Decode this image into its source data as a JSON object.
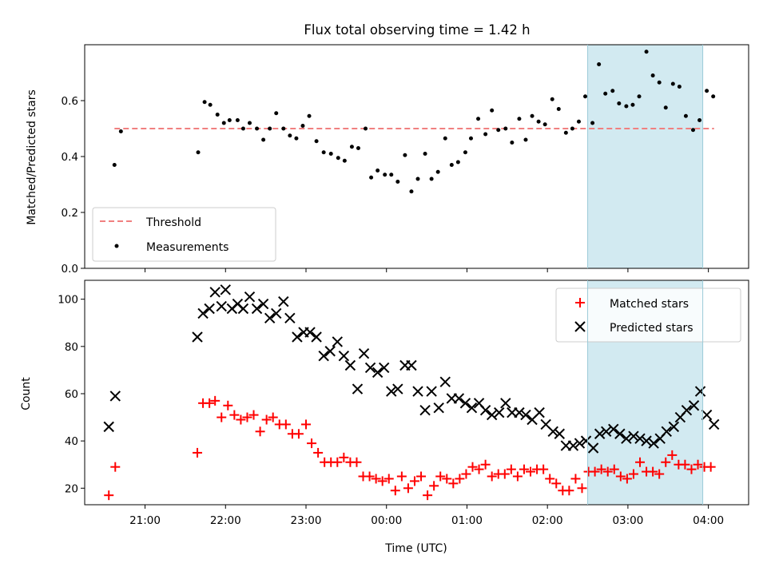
{
  "figure": {
    "title": "Flux total observing time = 1.42 h",
    "xlabel": "Time (UTC)",
    "xtick_labels": [
      "21:00",
      "22:00",
      "23:00",
      "00:00",
      "01:00",
      "02:00",
      "03:00",
      "04:00"
    ]
  },
  "colors": {
    "threshold": "#f08080",
    "measurements": "#000000",
    "matched": "#ff0000",
    "predicted": "#000000",
    "shade": "#add8e6"
  },
  "chart_data": [
    {
      "type": "scatter",
      "panel": "top",
      "title": "Flux total observing time = 1.42 h",
      "ylabel": "Matched/Predicted stars",
      "xlabel": "",
      "x_unit": "hours after 20:00 UTC",
      "xlim": [
        0.25,
        8.5
      ],
      "ylim": [
        0.0,
        0.8
      ],
      "yticks": [
        0.0,
        0.2,
        0.4,
        0.6
      ],
      "ytick_labels": [
        "0.0",
        "0.2",
        "0.4",
        "0.6"
      ],
      "legend_position": "lower-left",
      "shaded_span": [
        6.5,
        7.93
      ],
      "threshold": {
        "name": "Threshold",
        "y": 0.5,
        "x_range": [
          0.62,
          8.07
        ]
      },
      "series": [
        {
          "name": "Measurements",
          "x": [
            0.62,
            0.7,
            1.66,
            1.74,
            1.81,
            1.9,
            1.98,
            2.05,
            2.15,
            2.22,
            2.3,
            2.39,
            2.47,
            2.55,
            2.63,
            2.72,
            2.8,
            2.88,
            2.96,
            3.04,
            3.13,
            3.22,
            3.31,
            3.4,
            3.48,
            3.57,
            3.65,
            3.74,
            3.81,
            3.89,
            3.98,
            4.06,
            4.14,
            4.23,
            4.31,
            4.39,
            4.48,
            4.56,
            4.64,
            4.73,
            4.81,
            4.89,
            4.98,
            5.05,
            5.14,
            5.23,
            5.31,
            5.39,
            5.48,
            5.56,
            5.65,
            5.73,
            5.81,
            5.89,
            5.97,
            6.06,
            6.14,
            6.23,
            6.31,
            6.39,
            6.47,
            6.56,
            6.64,
            6.72,
            6.81,
            6.89,
            6.98,
            7.06,
            7.14,
            7.23,
            7.31,
            7.39,
            7.47,
            7.56,
            7.64,
            7.72,
            7.81,
            7.89,
            7.98,
            8.06
          ],
          "y": [
            0.37,
            0.49,
            0.415,
            0.595,
            0.585,
            0.55,
            0.52,
            0.53,
            0.53,
            0.5,
            0.52,
            0.5,
            0.46,
            0.5,
            0.555,
            0.5,
            0.475,
            0.465,
            0.51,
            0.545,
            0.455,
            0.415,
            0.41,
            0.395,
            0.385,
            0.435,
            0.43,
            0.5,
            0.325,
            0.35,
            0.335,
            0.335,
            0.31,
            0.405,
            0.275,
            0.32,
            0.41,
            0.32,
            0.345,
            0.465,
            0.37,
            0.38,
            0.415,
            0.465,
            0.535,
            0.48,
            0.565,
            0.495,
            0.5,
            0.45,
            0.535,
            0.46,
            0.545,
            0.525,
            0.515,
            0.605,
            0.57,
            0.485,
            0.5,
            0.525,
            0.615,
            0.52,
            0.73,
            0.625,
            0.635,
            0.59,
            0.58,
            0.585,
            0.615,
            0.775,
            0.69,
            0.665,
            0.575,
            0.66,
            0.65,
            0.545,
            0.495,
            0.53,
            0.635,
            0.615
          ]
        }
      ]
    },
    {
      "type": "scatter",
      "panel": "bottom",
      "ylabel": "Count",
      "xlabel": "Time (UTC)",
      "x_unit": "hours after 20:00 UTC",
      "xlim": [
        0.25,
        8.5
      ],
      "ylim": [
        13,
        108
      ],
      "yticks": [
        20,
        40,
        60,
        80,
        100
      ],
      "ytick_labels": [
        "20",
        "40",
        "60",
        "80",
        "100"
      ],
      "legend_position": "upper-right",
      "shaded_span": [
        6.5,
        7.93
      ],
      "series": [
        {
          "name": "Matched stars",
          "marker": "plus",
          "x": [
            0.55,
            0.63,
            1.65,
            1.72,
            1.8,
            1.87,
            1.95,
            2.03,
            2.11,
            2.19,
            2.27,
            2.35,
            2.43,
            2.51,
            2.59,
            2.67,
            2.75,
            2.83,
            2.91,
            3.0,
            3.07,
            3.15,
            3.23,
            3.31,
            3.39,
            3.47,
            3.55,
            3.63,
            3.71,
            3.79,
            3.87,
            3.95,
            4.03,
            4.11,
            4.19,
            4.27,
            4.35,
            4.43,
            4.51,
            4.59,
            4.67,
            4.75,
            4.83,
            4.91,
            4.99,
            5.07,
            5.15,
            5.23,
            5.31,
            5.39,
            5.47,
            5.55,
            5.63,
            5.71,
            5.79,
            5.87,
            5.95,
            6.03,
            6.11,
            6.19,
            6.27,
            6.35,
            6.43,
            6.51,
            6.59,
            6.67,
            6.75,
            6.83,
            6.91,
            6.99,
            7.07,
            7.15,
            7.23,
            7.31,
            7.39,
            7.47,
            7.55,
            7.63,
            7.71,
            7.79,
            7.87,
            7.95,
            8.03
          ],
          "y": [
            17,
            29,
            35,
            56,
            56,
            57,
            50,
            55,
            51,
            49,
            50,
            51,
            44,
            49,
            50,
            47,
            47,
            43,
            43,
            47,
            39,
            35,
            31,
            31,
            31,
            33,
            31,
            31,
            25,
            25,
            24,
            23,
            24,
            19,
            25,
            20,
            23,
            25,
            17,
            21,
            25,
            24,
            22,
            24,
            26,
            29,
            28,
            30,
            25,
            26,
            26,
            28,
            25,
            28,
            27,
            28,
            28,
            24,
            22,
            19,
            19,
            24,
            20,
            27,
            27,
            28,
            27,
            28,
            25,
            24,
            26,
            31,
            27,
            27,
            26,
            31,
            34,
            30,
            30,
            28,
            30,
            29,
            29
          ]
        },
        {
          "name": "Predicted stars",
          "marker": "x",
          "x": [
            0.55,
            0.63,
            1.65,
            1.72,
            1.8,
            1.87,
            1.95,
            2.0,
            2.08,
            2.15,
            2.22,
            2.3,
            2.39,
            2.47,
            2.55,
            2.63,
            2.72,
            2.8,
            2.89,
            2.97,
            3.05,
            3.13,
            3.22,
            3.3,
            3.39,
            3.47,
            3.55,
            3.64,
            3.72,
            3.8,
            3.89,
            3.97,
            4.06,
            4.14,
            4.23,
            4.31,
            4.39,
            4.48,
            4.56,
            4.65,
            4.73,
            4.81,
            4.9,
            4.98,
            5.06,
            5.15,
            5.23,
            5.31,
            5.4,
            5.48,
            5.56,
            5.65,
            5.73,
            5.81,
            5.9,
            5.98,
            6.07,
            6.15,
            6.23,
            6.32,
            6.4,
            6.48,
            6.57,
            6.65,
            6.73,
            6.82,
            6.9,
            6.98,
            7.07,
            7.15,
            7.23,
            7.32,
            7.4,
            7.48,
            7.57,
            7.65,
            7.73,
            7.82,
            7.9,
            7.98,
            8.07
          ],
          "y": [
            46,
            59,
            84,
            94,
            96,
            103,
            97,
            104,
            96,
            98,
            96,
            101,
            96,
            98,
            92,
            94,
            99,
            92,
            84,
            86,
            86,
            84,
            76,
            78,
            82,
            76,
            72,
            62,
            77,
            71,
            69,
            71,
            61,
            62,
            72,
            72,
            61,
            53,
            61,
            54,
            65,
            58,
            58,
            56,
            54,
            56,
            53,
            51,
            52,
            56,
            52,
            52,
            51,
            49,
            52,
            47,
            44,
            43,
            38,
            38,
            39,
            40,
            37,
            43,
            44,
            45,
            43,
            41,
            42,
            41,
            40,
            39,
            41,
            44,
            46,
            50,
            53,
            55,
            61,
            51,
            47
          ]
        }
      ]
    }
  ]
}
